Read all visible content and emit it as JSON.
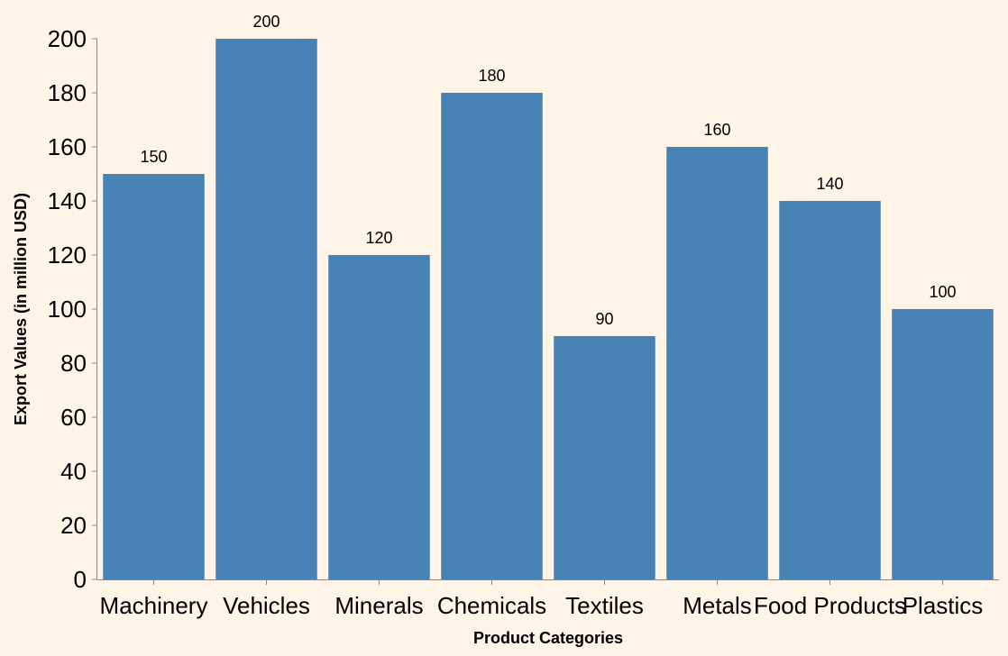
{
  "chart_data": {
    "type": "bar",
    "categories": [
      "Machinery",
      "Vehicles",
      "Minerals",
      "Chemicals",
      "Textiles",
      "Metals",
      "Food Products",
      "Plastics"
    ],
    "values": [
      150,
      200,
      120,
      180,
      90,
      160,
      140,
      100
    ],
    "xlabel": "Product Categories",
    "ylabel": "Export Values (in million USD)",
    "ylim": [
      0,
      200
    ],
    "yticks": [
      0,
      20,
      40,
      60,
      80,
      100,
      120,
      140,
      160,
      180,
      200
    ],
    "grid": false,
    "legend": "none",
    "bar_color": "#4682b4",
    "background_color": "#fef4e8",
    "axis_color": "#888888"
  }
}
